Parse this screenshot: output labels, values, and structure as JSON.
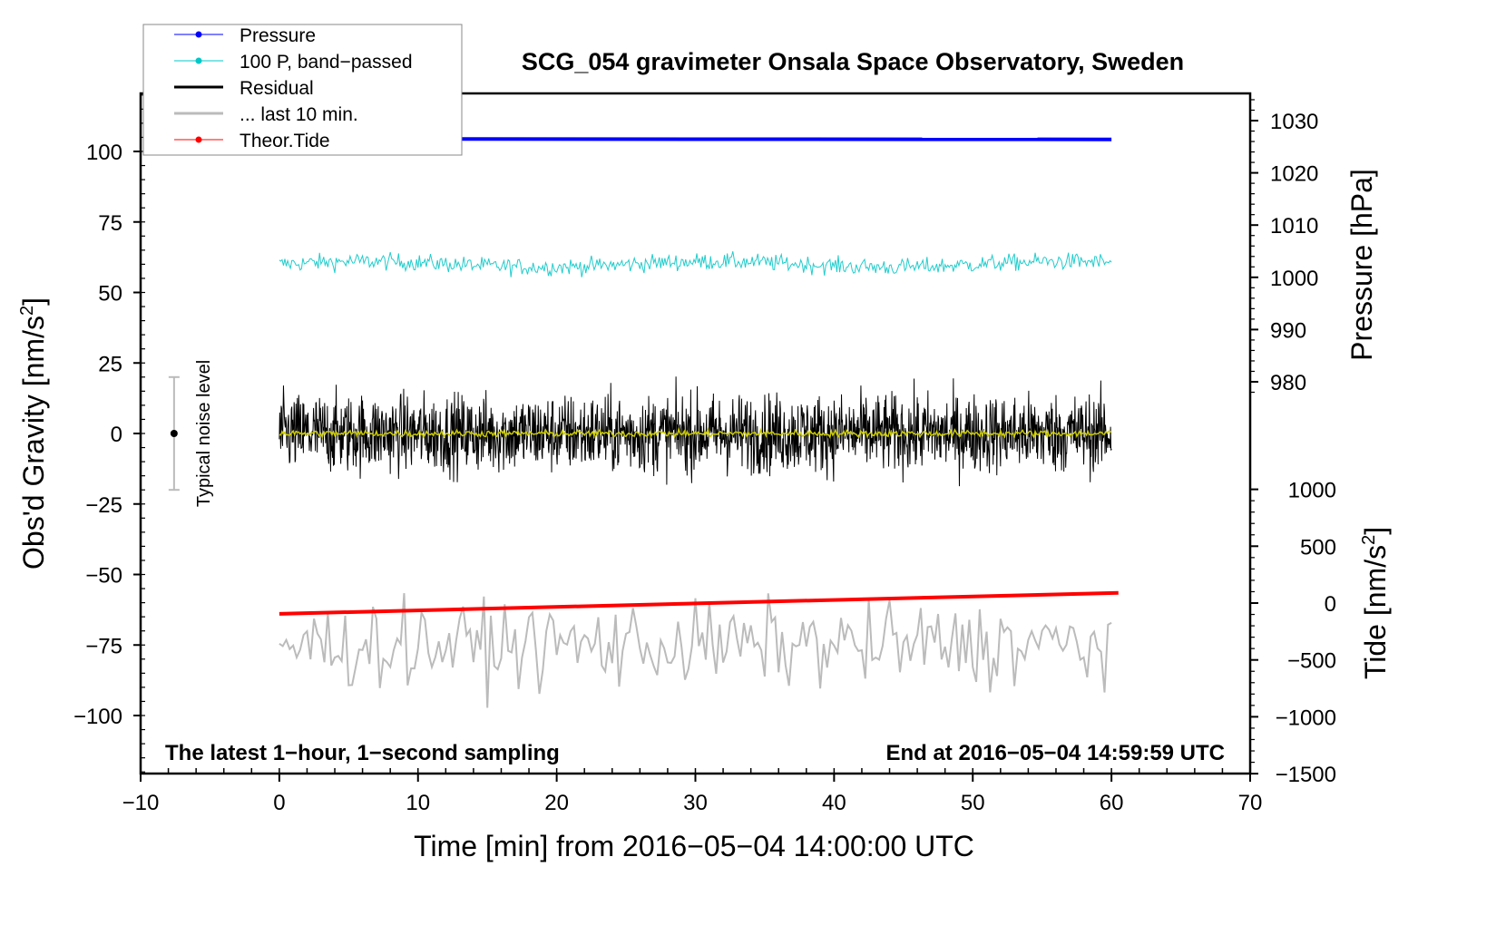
{
  "chart_data": {
    "type": "line",
    "title": "SCG_054 gravimeter Onsala Space Observatory, Sweden",
    "xlabel": "Time [min] from 2016−05−04 14:00:00 UTC",
    "ylabel_left": "Obs'd Gravity [nm/s²]",
    "ylabel_right_top": "Pressure [hPa]",
    "ylabel_right_bottom": "Tide [nm/s²]",
    "xlim": [
      -10,
      70
    ],
    "ylim_left": [
      -120,
      120
    ],
    "x_ticks": [
      "−10",
      "0",
      "10",
      "20",
      "30",
      "40",
      "50",
      "60",
      "70"
    ],
    "x_tick_values": [
      -10,
      0,
      10,
      20,
      30,
      40,
      50,
      60,
      70
    ],
    "y_left_ticks": [
      "100",
      "75",
      "50",
      "25",
      "0",
      "−25",
      "−50",
      "−75",
      "−100"
    ],
    "y_left_tick_values": [
      100,
      75,
      50,
      25,
      0,
      -25,
      -50,
      -75,
      -100
    ],
    "y_pressure_ticks": [
      "1030",
      "1020",
      "1010",
      "1000",
      "990",
      "980"
    ],
    "y_pressure_tick_values": [
      1030,
      1020,
      1010,
      1000,
      990,
      980
    ],
    "y_tide_ticks": [
      "1000",
      "500",
      "0",
      "−500",
      "−1000",
      "−1500"
    ],
    "y_tide_tick_values": [
      1000,
      500,
      0,
      -500,
      -1000,
      -1500
    ],
    "annotation_left": "The latest 1−hour, 1−second sampling",
    "annotation_right": "End at 2016−05−04 14:59:59 UTC",
    "noise_label": "Typical noise level",
    "noise_bar": {
      "x": -7,
      "center": 0,
      "half_range": 20
    },
    "legend": {
      "placement": "top-left",
      "entries": [
        {
          "label": "Pressure",
          "color": "#0000ff",
          "marker": "dot"
        },
        {
          "label": "100 P, band−passed",
          "color": "#00c8c8",
          "marker": "dot"
        },
        {
          "label": "Residual",
          "color": "#000000",
          "marker": "line"
        },
        {
          "label": "... last 10 min.",
          "color": "#bbbbbb",
          "marker": "line"
        },
        {
          "label": "Theor.Tide",
          "color": "#ff0000",
          "marker": "dot"
        }
      ]
    },
    "series": [
      {
        "name": "Pressure",
        "axis": "pressure",
        "x_range": [
          0,
          60
        ],
        "values_hPa_start_end": [
          1026.5,
          1026.4
        ],
        "color": "#0000ff"
      },
      {
        "name": "100 P, band-passed",
        "axis": "left",
        "x_range": [
          0,
          60
        ],
        "offset": 60,
        "amplitude": 3,
        "color": "#22cccc"
      },
      {
        "name": "Residual",
        "axis": "left",
        "x_range": [
          0,
          60
        ],
        "offset": 0,
        "amplitude": 20,
        "color": "#000000"
      },
      {
        "name": "Residual smoothed",
        "axis": "left",
        "x_range": [
          0,
          60
        ],
        "offset": 0,
        "amplitude": 1.5,
        "color": "#cccc00"
      },
      {
        "name": "... last 10 min.",
        "axis": "left",
        "x_range": [
          0,
          60
        ],
        "offset": -75,
        "amplitude": 15,
        "color": "#bbbbbb"
      },
      {
        "name": "Theor.Tide",
        "axis": "tide",
        "x": [
          0,
          60.5
        ],
        "values": [
          -95,
          90
        ],
        "color": "#ff0000"
      }
    ]
  }
}
